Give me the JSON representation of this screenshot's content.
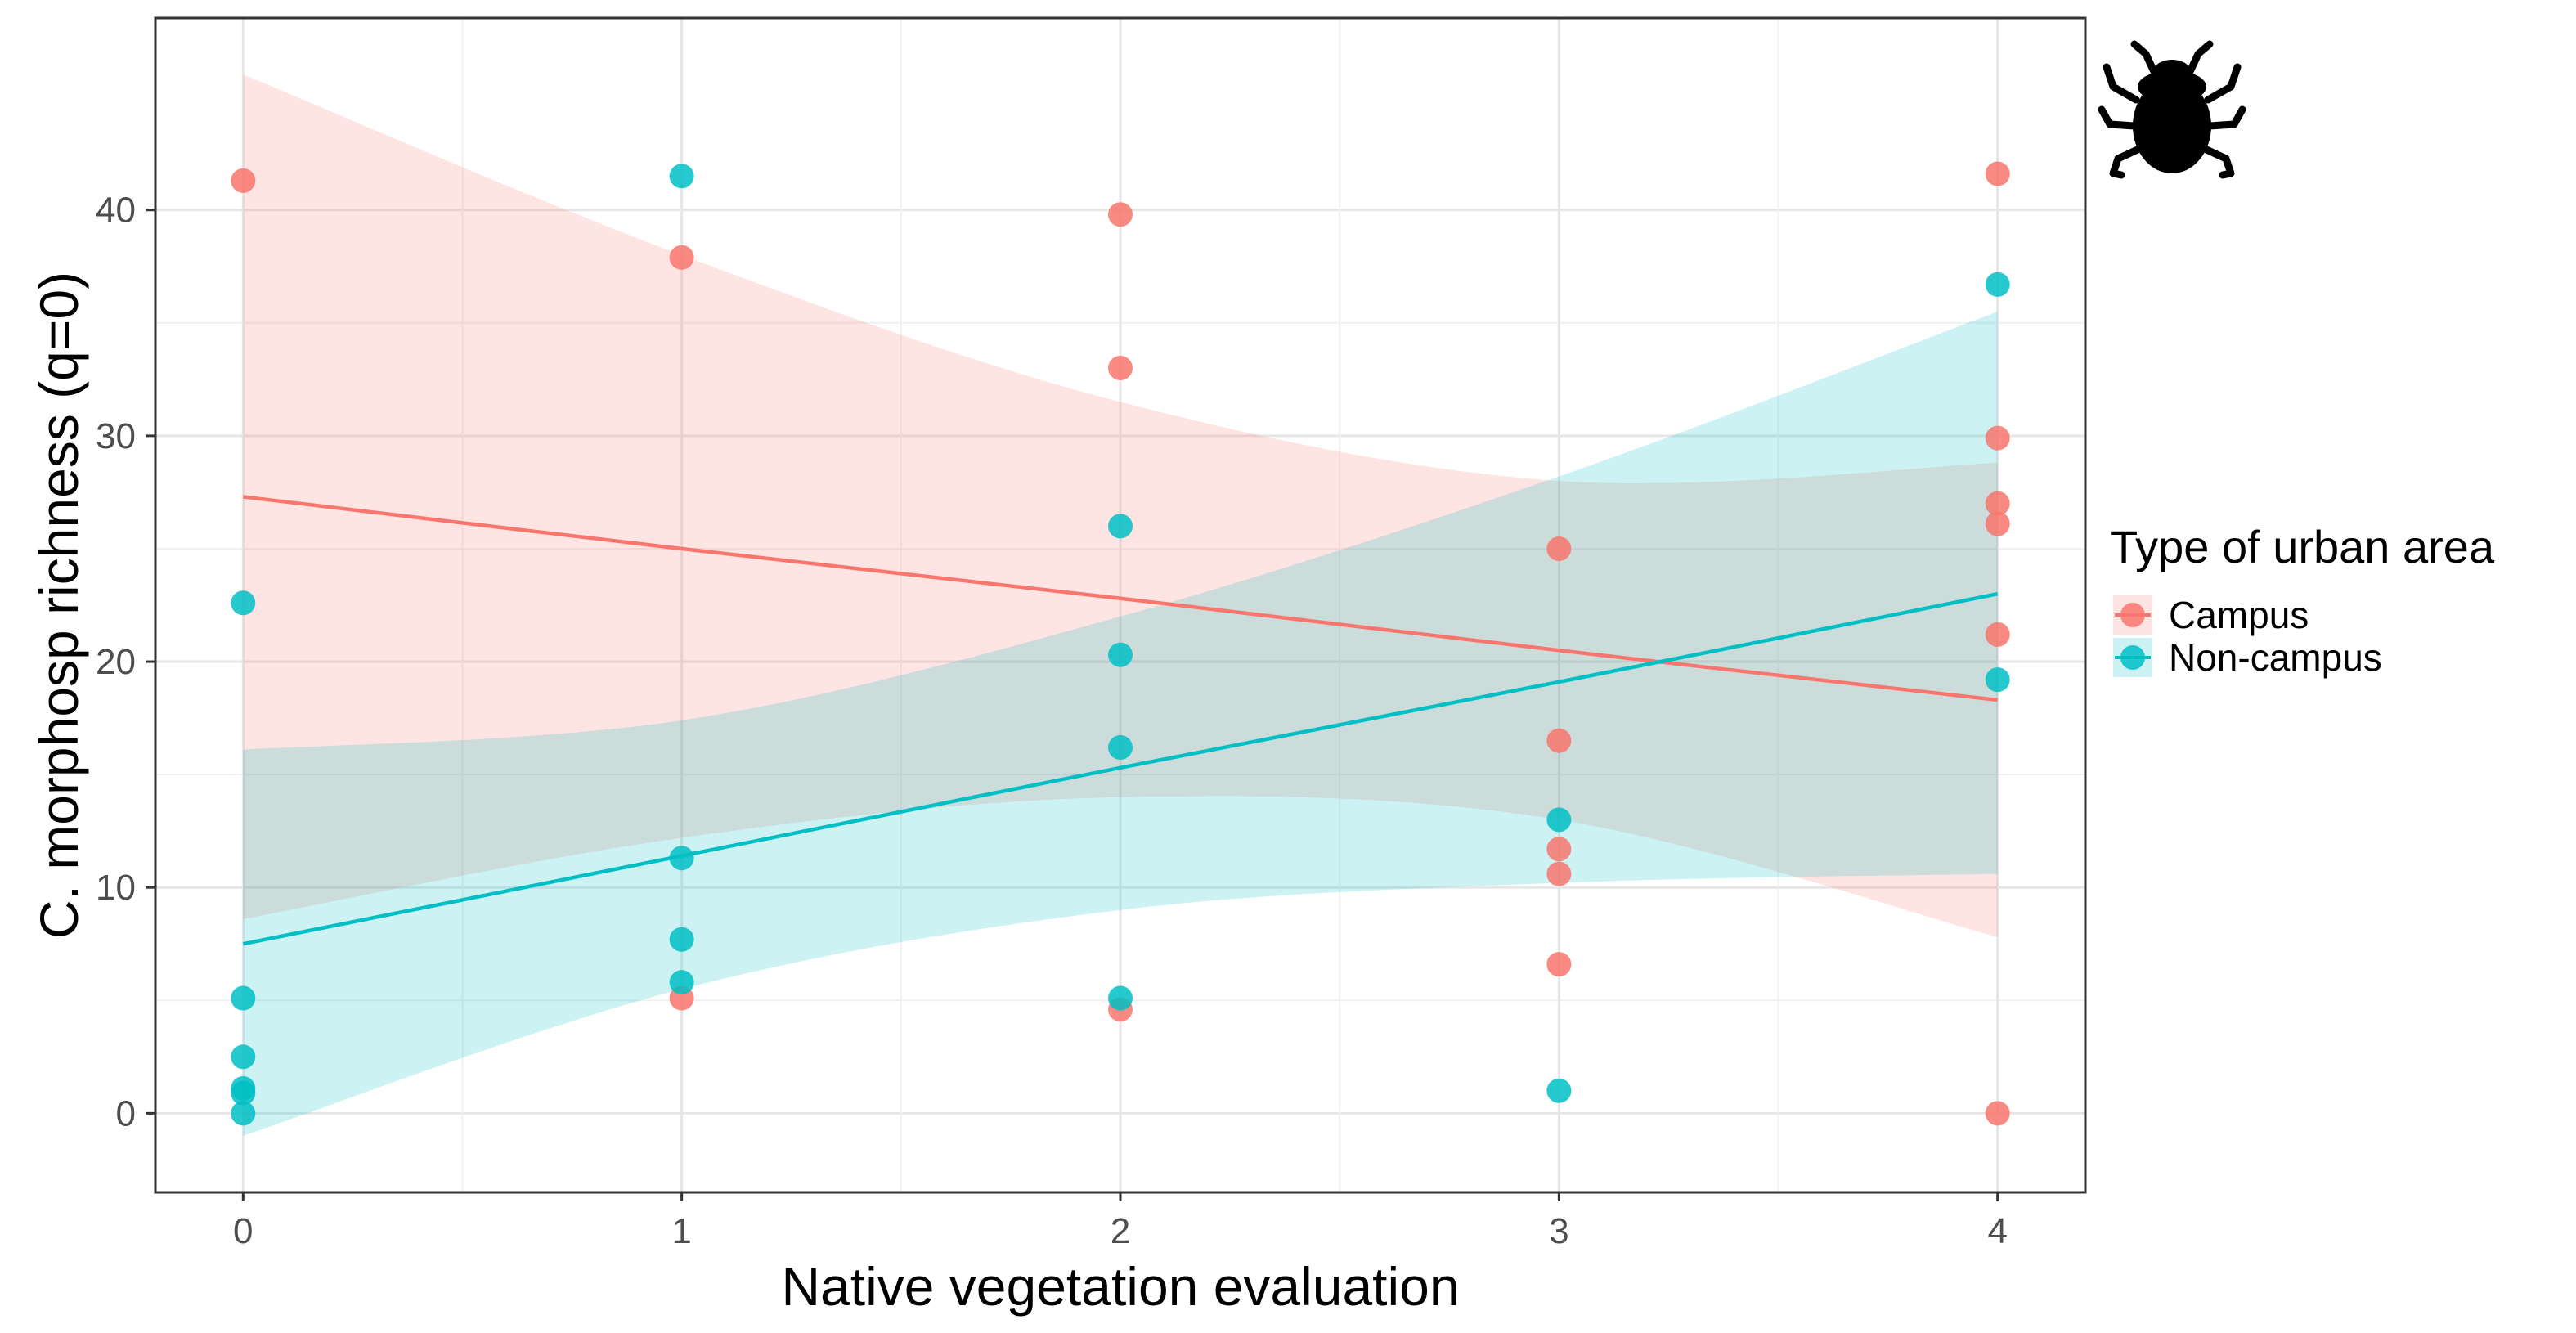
{
  "chart_data": {
    "type": "scatter",
    "title": "",
    "xlabel": "Native vegetation evaluation",
    "ylabel": "C. morphosp richness (q=0)",
    "xlim": [
      -0.2,
      4.2
    ],
    "ylim": [
      -3.5,
      48.5
    ],
    "xticks": [
      0,
      1,
      2,
      3,
      4
    ],
    "yticks": [
      0,
      10,
      20,
      30,
      40
    ],
    "grid": true,
    "legend": {
      "title": "Type of urban area",
      "position": "right",
      "entries": [
        "Campus",
        "Non-campus"
      ]
    },
    "icon": "beetle-icon",
    "series": [
      {
        "name": "Campus",
        "color": "#F8766D",
        "ribbon_color": "#F8766D",
        "x": [
          0,
          1,
          1,
          2,
          2,
          2,
          3,
          3,
          3,
          3,
          3,
          4,
          4,
          4,
          4,
          4,
          4
        ],
        "y": [
          41.3,
          37.9,
          5.1,
          39.8,
          33.0,
          4.6,
          25.0,
          16.5,
          11.7,
          10.6,
          6.6,
          41.6,
          29.9,
          27.0,
          26.1,
          21.2,
          0.0
        ],
        "fit": {
          "x": [
            0,
            1,
            2,
            3,
            4
          ],
          "y": [
            27.3,
            25.0,
            22.8,
            20.5,
            18.3
          ]
        },
        "ci_upper": {
          "x": [
            0,
            1,
            2,
            3,
            4
          ],
          "y": [
            46.0,
            38.0,
            31.5,
            28.0,
            28.8
          ]
        },
        "ci_lower": {
          "x": [
            0,
            1,
            2,
            3,
            4
          ],
          "y": [
            8.6,
            12.2,
            14.0,
            13.0,
            7.8
          ]
        }
      },
      {
        "name": "Non-campus",
        "color": "#00BFC4",
        "ribbon_color": "#00BFC4",
        "x": [
          0,
          0,
          0,
          0,
          0,
          0,
          1,
          1,
          1,
          1,
          2,
          2,
          2,
          2,
          3,
          3,
          4,
          4
        ],
        "y": [
          22.6,
          5.1,
          2.5,
          1.1,
          0.9,
          0.0,
          41.5,
          11.3,
          7.7,
          5.8,
          26.0,
          20.3,
          16.2,
          5.1,
          13.0,
          1.0,
          36.7,
          19.2
        ],
        "fit": {
          "x": [
            0,
            1,
            2,
            3,
            4
          ],
          "y": [
            7.5,
            11.4,
            15.3,
            19.1,
            23.0
          ]
        },
        "ci_upper": {
          "x": [
            0,
            1,
            2,
            3,
            4
          ],
          "y": [
            16.1,
            17.4,
            22.0,
            28.2,
            35.5
          ]
        },
        "ci_lower": {
          "x": [
            0,
            1,
            2,
            3,
            4
          ],
          "y": [
            -1.0,
            5.5,
            9.0,
            10.2,
            10.6
          ]
        }
      }
    ]
  }
}
